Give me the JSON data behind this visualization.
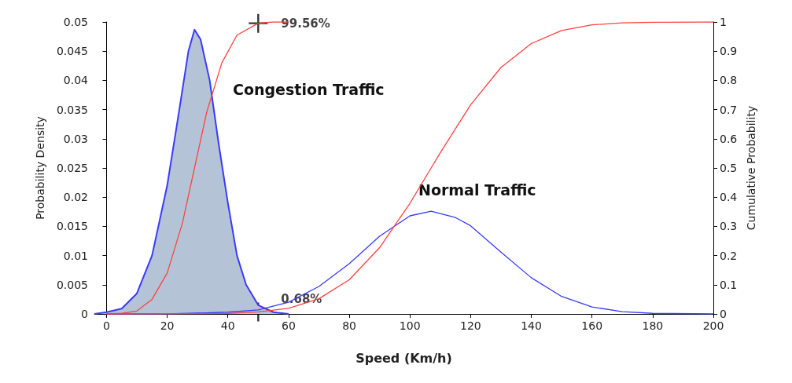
{
  "chart_data": {
    "type": "line",
    "xlabel": "Speed (Km/h)",
    "ylabel": "Probability Density",
    "y2label": "Cumulative Probability",
    "xlim": [
      -4,
      200
    ],
    "xticks": [
      0,
      20,
      40,
      60,
      80,
      100,
      120,
      140,
      160,
      180,
      200
    ],
    "ylim": [
      0,
      0.05
    ],
    "yticks": [
      0,
      0.005,
      0.01,
      0.015,
      0.02,
      0.025,
      0.03,
      0.035,
      0.04,
      0.045,
      0.05
    ],
    "y2lim": [
      0,
      1
    ],
    "y2ticks": [
      0,
      0.1,
      0.2,
      0.3,
      0.4,
      0.5,
      0.6,
      0.7,
      0.8,
      0.9,
      1
    ],
    "grid": false,
    "marker": "none",
    "line_style": "solid",
    "series": [
      {
        "type": "area",
        "color": "#3a3aff",
        "x": [
          -4,
          0,
          5,
          10,
          15,
          20,
          24,
          27,
          29,
          31,
          34,
          37,
          40,
          43,
          46,
          50,
          55,
          60
        ],
        "values": [
          0,
          0.0003,
          0.0009,
          0.0035,
          0.01,
          0.022,
          0.035,
          0.045,
          0.0487,
          0.047,
          0.04,
          0.029,
          0.019,
          0.01,
          0.005,
          0.0015,
          0.0003,
          0
        ]
      },
      {
        "color": "#ff4040",
        "axis": "y2",
        "x": [
          0,
          5,
          10,
          15,
          20,
          25,
          29,
          33,
          38,
          43,
          50,
          55,
          60
        ],
        "values": [
          0,
          0.002,
          0.01,
          0.05,
          0.14,
          0.31,
          0.5,
          0.69,
          0.86,
          0.955,
          0.9956,
          1,
          1
        ]
      },
      {
        "color": "#3a3aff",
        "x": [
          0,
          20,
          40,
          50,
          60,
          70,
          80,
          90,
          100,
          107,
          115,
          120,
          130,
          140,
          150,
          160,
          170,
          180,
          200
        ],
        "values": [
          0,
          0,
          0.0003,
          0.0007,
          0.002,
          0.0047,
          0.0086,
          0.0133,
          0.0168,
          0.0176,
          0.0165,
          0.0151,
          0.0106,
          0.0062,
          0.003,
          0.0012,
          0.0004,
          0.0001,
          0
        ]
      },
      {
        "color": "#ff4040",
        "axis": "y2",
        "x": [
          0,
          40,
          50,
          60,
          70,
          80,
          90,
          100,
          107,
          110,
          120,
          130,
          140,
          150,
          160,
          170,
          180,
          200
        ],
        "values": [
          0,
          0.0016,
          0.0068,
          0.019,
          0.052,
          0.117,
          0.227,
          0.379,
          0.5,
          0.552,
          0.716,
          0.844,
          0.926,
          0.971,
          0.99,
          0.997,
          0.999,
          1
        ]
      },
      {
        "type": "scatter",
        "color": "#000000",
        "axis": "y2",
        "marker": "cross",
        "x": [
          50,
          50
        ],
        "values": [
          0.9956,
          0.0068
        ],
        "value_labels": [
          "99.56%",
          "0.68%"
        ]
      }
    ],
    "annotations": [
      "Congestion Traffic",
      "Normal Traffic"
    ]
  }
}
